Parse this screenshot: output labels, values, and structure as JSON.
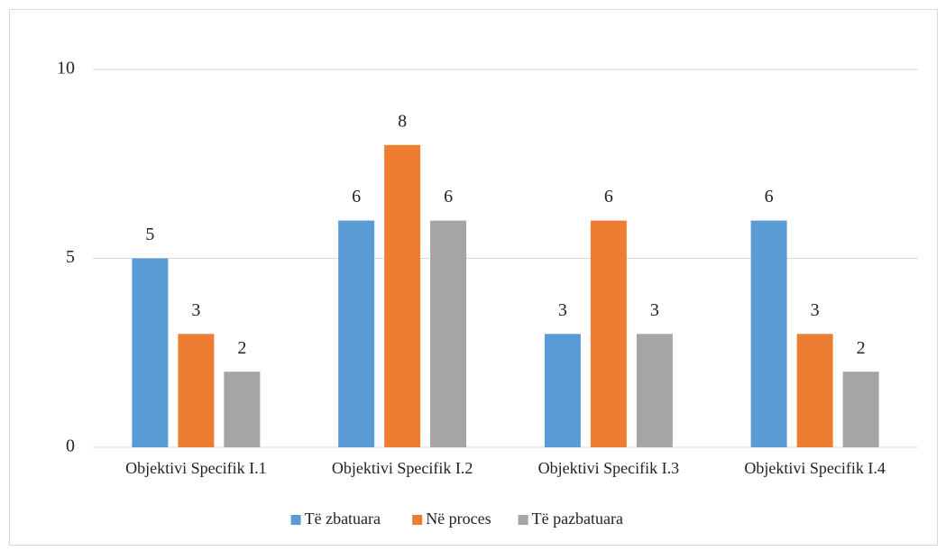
{
  "chart_data": {
    "type": "bar",
    "categories": [
      "Objektivi Specifik I.1",
      "Objektivi Specifik I.2",
      "Objektivi Specifik I.3",
      "Objektivi Specifik I.4"
    ],
    "series": [
      {
        "name": "Të zbatuara",
        "color": "#5b9bd5",
        "values": [
          5,
          6,
          3,
          6
        ]
      },
      {
        "name": "Në proces",
        "color": "#ed7d31",
        "values": [
          3,
          8,
          6,
          3
        ]
      },
      {
        "name": "Të pazbatuara",
        "color": "#a5a5a5",
        "values": [
          2,
          6,
          3,
          2
        ]
      }
    ],
    "ylim": [
      0,
      10
    ],
    "yticks": [
      0,
      5,
      10
    ],
    "grid": true,
    "legend": "bottom",
    "data_labels": true
  }
}
